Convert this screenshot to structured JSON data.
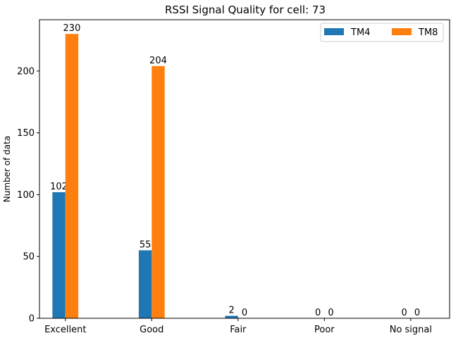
{
  "chart_data": {
    "type": "bar",
    "title": "RSSI Signal Quality for cell: 73",
    "xlabel": "",
    "ylabel": "Number of data",
    "categories": [
      "Excellent",
      "Good",
      "Fair",
      "Poor",
      "No signal"
    ],
    "series": [
      {
        "name": "TM4",
        "values": [
          102,
          55,
          2,
          0,
          0
        ],
        "color": "#1f77b4"
      },
      {
        "name": "TM8",
        "values": [
          230,
          204,
          0,
          0,
          0
        ],
        "color": "#ff7f0e"
      }
    ],
    "data_labels": [
      [
        "102",
        "55",
        "2",
        "0",
        "0"
      ],
      [
        "230",
        "204",
        "0",
        "0",
        "0"
      ]
    ],
    "ylim": [
      0,
      241.5
    ],
    "yticks": [
      0,
      50,
      100,
      150,
      200
    ],
    "ytick_labels": [
      "0",
      "50",
      "100",
      "150",
      "200"
    ],
    "grid": false,
    "legend_position": "top-right"
  }
}
